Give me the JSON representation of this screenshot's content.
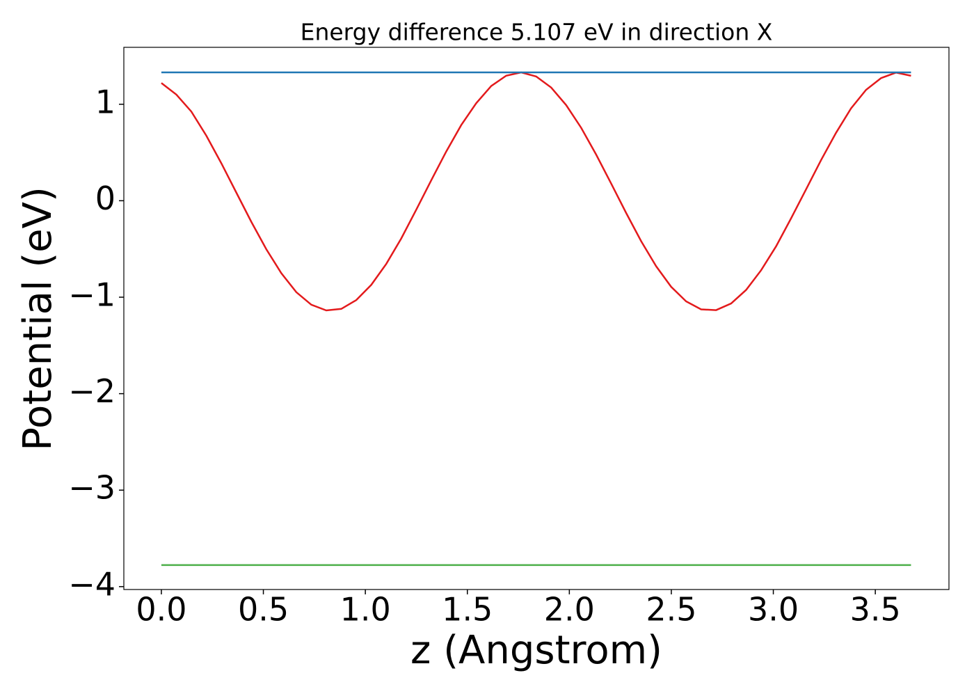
{
  "chart_data": {
    "type": "line",
    "title": "Energy difference 5.107 eV in direction X",
    "xlabel": "z (Angstrom)",
    "ylabel": "Potential (eV)",
    "xlim": [
      -0.184,
      3.861
    ],
    "ylim": [
      -4.03,
      1.59
    ],
    "xticks": [
      {
        "value": 0,
        "label": "0.0"
      },
      {
        "value": 0.5,
        "label": "0.5"
      },
      {
        "value": 1,
        "label": "1.0"
      },
      {
        "value": 1.5,
        "label": "1.5"
      },
      {
        "value": 2,
        "label": "2.0"
      },
      {
        "value": 2.5,
        "label": "2.5"
      },
      {
        "value": 3,
        "label": "3.0"
      },
      {
        "value": 3.5,
        "label": "3.5"
      }
    ],
    "yticks": [
      {
        "value": -4,
        "label": "−4"
      },
      {
        "value": -3,
        "label": "−3"
      },
      {
        "value": -2,
        "label": "−2"
      },
      {
        "value": -1,
        "label": "−1"
      },
      0,
      1
    ],
    "grid": false,
    "series": [
      {
        "color": "#e31a1c",
        "x": [
          0,
          0.0735,
          0.147,
          0.2205,
          0.294,
          0.3675,
          0.441,
          0.5145,
          0.588,
          0.6615,
          0.735,
          0.8085,
          0.882,
          0.9555,
          1.029,
          1.1025,
          1.176,
          1.2495,
          1.323,
          1.3965,
          1.47,
          1.5435,
          1.617,
          1.6905,
          1.764,
          1.8375,
          1.911,
          1.9845,
          2.058,
          2.1315,
          2.205,
          2.2785,
          2.352,
          2.4255,
          2.499,
          2.5725,
          2.646,
          2.7195,
          2.793,
          2.8665,
          2.94,
          3.0135,
          3.087,
          3.1605,
          3.234,
          3.3075,
          3.381,
          3.4545,
          3.528,
          3.6015,
          3.675
        ],
        "values": [
          1.22,
          1.1,
          0.924,
          0.674,
          0.388,
          0.084,
          -0.219,
          -0.503,
          -0.751,
          -0.948,
          -1.078,
          -1.137,
          -1.121,
          -1.03,
          -0.872,
          -0.655,
          -0.391,
          -0.093,
          0.212,
          0.51,
          0.784,
          1.011,
          1.189,
          1.296,
          1.33,
          1.288,
          1.173,
          0.991,
          0.756,
          0.478,
          0.178,
          -0.127,
          -0.419,
          -0.679,
          -0.892,
          -1.043,
          -1.126,
          -1.134,
          -1.065,
          -0.925,
          -0.721,
          -0.473,
          -0.183,
          0.118,
          0.421,
          0.704,
          0.957,
          1.149,
          1.271,
          1.328,
          1.295
        ]
      },
      {
        "color": "#1f77b4",
        "x": [
          0,
          3.675
        ],
        "values": [
          1.33,
          1.33
        ]
      },
      {
        "color": "#4daf4a",
        "x": [
          0,
          3.675
        ],
        "values": [
          -3.777,
          -3.777
        ]
      }
    ]
  }
}
